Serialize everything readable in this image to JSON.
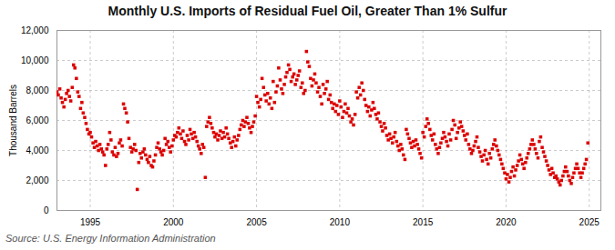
{
  "chart_data": {
    "type": "scatter",
    "title": "Monthly U.S. Imports of Residual Fuel Oil, Greater Than 1% Sulfur",
    "ylabel": "Thousand Barrels",
    "source": "Source: U.S. Energy Information Administration",
    "color": "#dd0000",
    "marker": "square",
    "grid": true,
    "xlim": [
      1993.0,
      2025.7
    ],
    "xticks": [
      1995,
      2000,
      2005,
      2010,
      2015,
      2020,
      2025
    ],
    "ylim": [
      0,
      12000
    ],
    "yticks": [
      0,
      {
        "value": 2000,
        "label": "2,000"
      },
      {
        "value": 4000,
        "label": "4,000"
      },
      {
        "value": 6000,
        "label": "6,000"
      },
      {
        "value": 8000,
        "label": "8,000"
      },
      {
        "value": 10000,
        "label": "10,000"
      },
      {
        "value": 12000,
        "label": "12,000"
      }
    ],
    "x": [
      1993.0,
      1993.08,
      1993.17,
      1993.25,
      1993.33,
      1993.42,
      1993.5,
      1993.58,
      1993.67,
      1993.75,
      1993.83,
      1993.92,
      1994.0,
      1994.08,
      1994.17,
      1994.25,
      1994.33,
      1994.42,
      1994.5,
      1994.58,
      1994.67,
      1994.75,
      1994.83,
      1994.92,
      1995.0,
      1995.08,
      1995.17,
      1995.25,
      1995.33,
      1995.42,
      1995.5,
      1995.58,
      1995.67,
      1995.75,
      1995.83,
      1995.92,
      1996.0,
      1996.08,
      1996.17,
      1996.25,
      1996.33,
      1996.42,
      1996.5,
      1996.58,
      1996.67,
      1996.75,
      1996.83,
      1996.92,
      1997.0,
      1997.08,
      1997.17,
      1997.25,
      1997.33,
      1997.42,
      1997.5,
      1997.58,
      1997.67,
      1997.75,
      1997.83,
      1997.92,
      1998.0,
      1998.08,
      1998.17,
      1998.25,
      1998.33,
      1998.42,
      1998.5,
      1998.58,
      1998.67,
      1998.75,
      1998.83,
      1998.92,
      1999.0,
      1999.08,
      1999.17,
      1999.25,
      1999.33,
      1999.42,
      1999.5,
      1999.58,
      1999.67,
      1999.75,
      1999.83,
      1999.92,
      2000.0,
      2000.08,
      2000.17,
      2000.25,
      2000.33,
      2000.42,
      2000.5,
      2000.58,
      2000.67,
      2000.75,
      2000.83,
      2000.92,
      2001.0,
      2001.08,
      2001.17,
      2001.25,
      2001.33,
      2001.42,
      2001.5,
      2001.58,
      2001.67,
      2001.75,
      2001.83,
      2001.92,
      2002.0,
      2002.08,
      2002.17,
      2002.25,
      2002.33,
      2002.42,
      2002.5,
      2002.58,
      2002.67,
      2002.75,
      2002.83,
      2002.92,
      2003.0,
      2003.08,
      2003.17,
      2003.25,
      2003.33,
      2003.42,
      2003.5,
      2003.58,
      2003.67,
      2003.75,
      2003.83,
      2003.92,
      2004.0,
      2004.08,
      2004.17,
      2004.25,
      2004.33,
      2004.42,
      2004.5,
      2004.58,
      2004.67,
      2004.75,
      2004.83,
      2004.92,
      2005.0,
      2005.08,
      2005.17,
      2005.25,
      2005.33,
      2005.42,
      2005.5,
      2005.58,
      2005.67,
      2005.75,
      2005.83,
      2005.92,
      2006.0,
      2006.08,
      2006.17,
      2006.25,
      2006.33,
      2006.42,
      2006.5,
      2006.58,
      2006.67,
      2006.75,
      2006.83,
      2006.92,
      2007.0,
      2007.08,
      2007.17,
      2007.25,
      2007.33,
      2007.42,
      2007.5,
      2007.58,
      2007.67,
      2007.75,
      2007.83,
      2007.92,
      2008.0,
      2008.08,
      2008.17,
      2008.25,
      2008.33,
      2008.42,
      2008.5,
      2008.58,
      2008.67,
      2008.75,
      2008.83,
      2008.92,
      2009.0,
      2009.08,
      2009.17,
      2009.25,
      2009.33,
      2009.42,
      2009.5,
      2009.58,
      2009.67,
      2009.75,
      2009.83,
      2009.92,
      2010.0,
      2010.08,
      2010.17,
      2010.25,
      2010.33,
      2010.42,
      2010.5,
      2010.58,
      2010.67,
      2010.75,
      2010.83,
      2010.92,
      2011.0,
      2011.08,
      2011.17,
      2011.25,
      2011.33,
      2011.42,
      2011.5,
      2011.58,
      2011.67,
      2011.75,
      2011.83,
      2011.92,
      2012.0,
      2012.08,
      2012.17,
      2012.25,
      2012.33,
      2012.42,
      2012.5,
      2012.58,
      2012.67,
      2012.75,
      2012.83,
      2012.92,
      2013.0,
      2013.08,
      2013.17,
      2013.25,
      2013.33,
      2013.42,
      2013.5,
      2013.58,
      2013.67,
      2013.75,
      2013.83,
      2013.92,
      2014.0,
      2014.08,
      2014.17,
      2014.25,
      2014.33,
      2014.42,
      2014.5,
      2014.58,
      2014.67,
      2014.75,
      2014.83,
      2014.92,
      2015.0,
      2015.08,
      2015.17,
      2015.25,
      2015.33,
      2015.42,
      2015.5,
      2015.58,
      2015.67,
      2015.75,
      2015.83,
      2015.92,
      2016.0,
      2016.08,
      2016.17,
      2016.25,
      2016.33,
      2016.42,
      2016.5,
      2016.58,
      2016.67,
      2016.75,
      2016.83,
      2016.92,
      2017.0,
      2017.08,
      2017.17,
      2017.25,
      2017.33,
      2017.42,
      2017.5,
      2017.58,
      2017.67,
      2017.75,
      2017.83,
      2017.92,
      2018.0,
      2018.08,
      2018.17,
      2018.25,
      2018.33,
      2018.42,
      2018.5,
      2018.58,
      2018.67,
      2018.75,
      2018.83,
      2018.92,
      2019.0,
      2019.08,
      2019.17,
      2019.25,
      2019.33,
      2019.42,
      2019.5,
      2019.58,
      2019.67,
      2019.75,
      2019.83,
      2019.92,
      2020.0,
      2020.08,
      2020.17,
      2020.25,
      2020.33,
      2020.42,
      2020.5,
      2020.58,
      2020.67,
      2020.75,
      2020.83,
      2020.92,
      2021.0,
      2021.08,
      2021.17,
      2021.25,
      2021.33,
      2021.42,
      2021.5,
      2021.58,
      2021.67,
      2021.75,
      2021.83,
      2021.92,
      2022.0,
      2022.08,
      2022.17,
      2022.25,
      2022.33,
      2022.42,
      2022.5,
      2022.58,
      2022.67,
      2022.75,
      2022.83,
      2022.92,
      2023.0,
      2023.08,
      2023.17,
      2023.25,
      2023.33,
      2023.42,
      2023.5,
      2023.58,
      2023.67,
      2023.75,
      2023.83,
      2023.92,
      2024.0,
      2024.08,
      2024.17,
      2024.25,
      2024.33,
      2024.42,
      2024.5,
      2024.58,
      2024.67,
      2024.75,
      2024.83,
      2024.92
    ],
    "values": [
      7900,
      7700,
      8100,
      7500,
      7200,
      6900,
      7400,
      7800,
      8000,
      7600,
      7300,
      8200,
      9700,
      9500,
      8800,
      7900,
      7600,
      6800,
      7200,
      6500,
      6200,
      5800,
      5400,
      5100,
      5200,
      4900,
      4500,
      4200,
      4600,
      4300,
      4000,
      4400,
      4100,
      3900,
      3700,
      3000,
      4100,
      4400,
      5200,
      4700,
      3900,
      3700,
      4200,
      3600,
      3800,
      4500,
      4700,
      4300,
      7100,
      6800,
      6500,
      5900,
      4800,
      4200,
      3900,
      4100,
      4400,
      4000,
      1400,
      3200,
      3800,
      3500,
      3900,
      4100,
      3700,
      3400,
      3200,
      3600,
      3000,
      2900,
      3300,
      3700,
      4200,
      4500,
      4100,
      3900,
      3700,
      4000,
      4800,
      4400,
      4600,
      4200,
      3900,
      4300,
      4700,
      5000,
      4900,
      5200,
      5500,
      5100,
      4800,
      5300,
      4600,
      4400,
      5000,
      4700,
      5400,
      5100,
      4800,
      5200,
      4900,
      4600,
      4300,
      4100,
      3800,
      4400,
      4200,
      2200,
      5600,
      5900,
      6200,
      5800,
      5500,
      5200,
      4900,
      5100,
      4700,
      5000,
      5300,
      4800,
      5200,
      4900,
      5500,
      5100,
      4800,
      4500,
      4200,
      4600,
      4900,
      4300,
      4700,
      5000,
      5400,
      5700,
      6000,
      5600,
      5900,
      6200,
      5800,
      5500,
      5200,
      5600,
      5900,
      6300,
      7600,
      7200,
      6900,
      7400,
      8800,
      8200,
      7700,
      7300,
      7800,
      7100,
      7500,
      6800,
      8600,
      7200,
      7900,
      8300,
      9500,
      8700,
      8100,
      7800,
      8400,
      8900,
      9200,
      9700,
      9400,
      8600,
      8900,
      9100,
      8400,
      8700,
      9000,
      9300,
      8200,
      8500,
      7800,
      8000,
      10600,
      9900,
      9600,
      8800,
      8300,
      8700,
      9100,
      8500,
      7900,
      8200,
      7600,
      7100,
      8400,
      7800,
      8100,
      8600,
      7400,
      7700,
      7200,
      6800,
      7100,
      6600,
      7000,
      6400,
      7300,
      6900,
      6200,
      6600,
      7100,
      6500,
      6800,
      6300,
      5900,
      6100,
      5700,
      6400,
      7900,
      7500,
      8200,
      7700,
      8500,
      8000,
      7400,
      7000,
      6600,
      6900,
      6300,
      6700,
      7200,
      6800,
      6400,
      6100,
      6500,
      5900,
      5600,
      5300,
      5800,
      5500,
      5000,
      4700,
      5100,
      4800,
      4500,
      4900,
      5200,
      4600,
      4300,
      4000,
      4400,
      4100,
      3700,
      3400,
      5400,
      5100,
      4800,
      4500,
      4200,
      4600,
      4300,
      4700,
      4400,
      4100,
      3800,
      3500,
      5200,
      4900,
      5600,
      6100,
      5800,
      5400,
      5000,
      4700,
      5100,
      4400,
      4100,
      3800,
      4200,
      4500,
      4800,
      5200,
      4900,
      4600,
      4300,
      5100,
      4700,
      5400,
      6000,
      5700,
      4800,
      5200,
      5500,
      5900,
      5600,
      5300,
      5000,
      4700,
      5100,
      4400,
      4100,
      3800,
      4000,
      4300,
      4600,
      4900,
      4200,
      3900,
      3600,
      3300,
      3700,
      4000,
      3400,
      3100,
      3800,
      3500,
      4100,
      4400,
      4700,
      4300,
      4000,
      3700,
      3400,
      3100,
      2800,
      2500,
      2100,
      2400,
      1900,
      2200,
      2600,
      2900,
      2300,
      2700,
      3000,
      3300,
      3700,
      3400,
      3100,
      2800,
      3200,
      3500,
      3800,
      4100,
      4400,
      4700,
      4400,
      4100,
      3800,
      3500,
      4600,
      4900,
      4200,
      3900,
      3600,
      3300,
      3000,
      2700,
      2400,
      2800,
      2500,
      2200,
      2300,
      2100,
      1900,
      1700,
      2000,
      2300,
      2600,
      2900,
      2600,
      2300,
      2000,
      1800,
      2200,
      2500,
      2800,
      3100,
      2800,
      2500,
      2200,
      2500,
      2800,
      3100,
      3400,
      4500
    ]
  }
}
